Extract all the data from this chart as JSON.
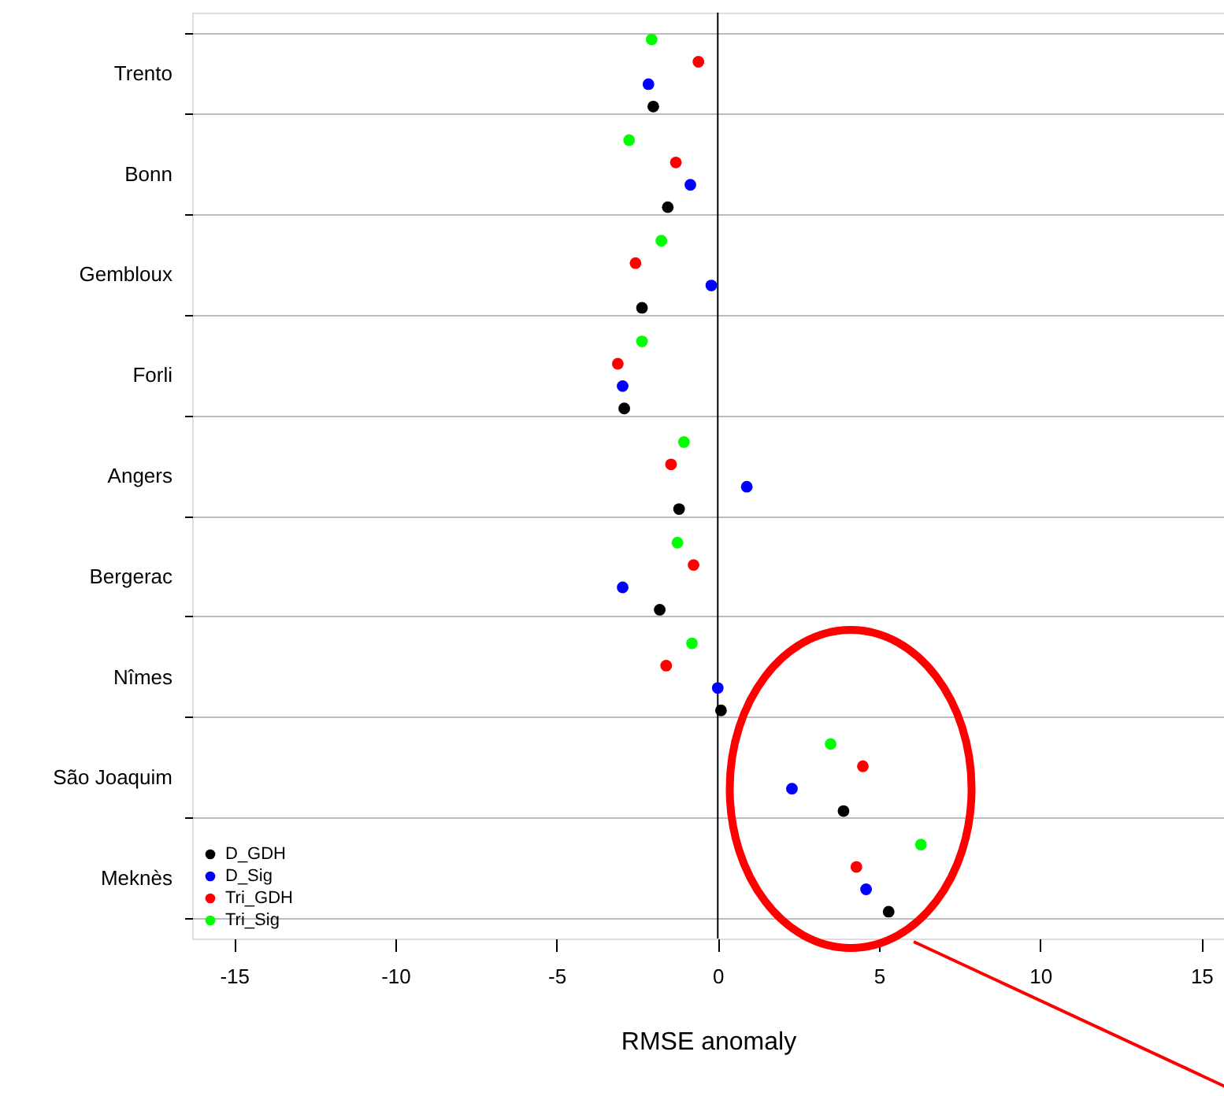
{
  "chart_data": {
    "type": "scatter",
    "orientation": "horizontal",
    "xlabel": "RMSE anomaly",
    "categories": [
      "Trento",
      "Bonn",
      "Gembloux",
      "Forli",
      "Angers",
      "Bergerac",
      "Nîmes",
      "São Joaquim",
      "Meknès"
    ],
    "series": [
      {
        "name": "D_GDH",
        "color": "#000000",
        "values": [
          -2.0,
          -1.55,
          -2.35,
          -2.9,
          -1.2,
          -1.8,
          0.1,
          3.9,
          5.3
        ]
      },
      {
        "name": "D_Sig",
        "color": "#0000ff",
        "values": [
          -2.15,
          -0.85,
          -0.2,
          -2.95,
          0.9,
          -2.95,
          0.0,
          2.3,
          4.6
        ]
      },
      {
        "name": "Tri_GDH",
        "color": "#ff0000",
        "values": [
          -0.6,
          -1.3,
          -2.55,
          -3.1,
          -1.45,
          -0.75,
          -1.6,
          4.5,
          4.3
        ]
      },
      {
        "name": "Tri_Sig",
        "color": "#00ff00",
        "values": [
          -2.05,
          -2.75,
          -1.75,
          -2.35,
          -1.05,
          -1.25,
          -0.8,
          3.5,
          6.3
        ]
      }
    ],
    "xlim": [
      -16.3,
      15.7
    ],
    "xticks": [
      -15,
      -10,
      -5,
      0,
      5,
      10,
      15
    ],
    "ref_lines": [
      {
        "axis": "x",
        "value": 0,
        "color": "#000000"
      }
    ],
    "grid": "y",
    "legend": "bottom left",
    "marker": "circle"
  }
}
